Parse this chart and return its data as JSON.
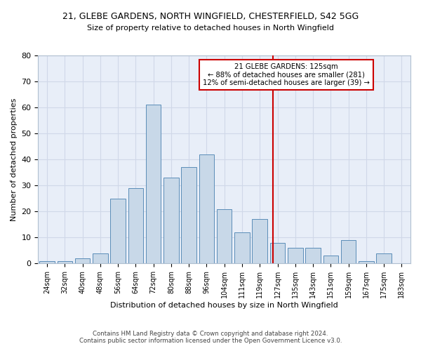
{
  "title": "21, GLEBE GARDENS, NORTH WINGFIELD, CHESTERFIELD, S42 5GG",
  "subtitle": "Size of property relative to detached houses in North Wingfield",
  "xlabel": "Distribution of detached houses by size in North Wingfield",
  "ylabel": "Number of detached properties",
  "bar_color": "#c8d8e8",
  "bar_edge_color": "#5b8db8",
  "categories": [
    "24sqm",
    "32sqm",
    "40sqm",
    "48sqm",
    "56sqm",
    "64sqm",
    "72sqm",
    "80sqm",
    "88sqm",
    "96sqm",
    "104sqm",
    "111sqm",
    "119sqm",
    "127sqm",
    "135sqm",
    "143sqm",
    "151sqm",
    "159sqm",
    "167sqm",
    "175sqm",
    "183sqm"
  ],
  "values": [
    1,
    1,
    2,
    4,
    25,
    29,
    61,
    33,
    37,
    42,
    21,
    12,
    17,
    8,
    6,
    6,
    3,
    9,
    1,
    4,
    0
  ],
  "ylim": [
    0,
    80
  ],
  "yticks": [
    0,
    10,
    20,
    30,
    40,
    50,
    60,
    70,
    80
  ],
  "vline_pos": 12.75,
  "annotation_title": "21 GLEBE GARDENS: 125sqm",
  "annotation_line1": "← 88% of detached houses are smaller (281)",
  "annotation_line2": "12% of semi-detached houses are larger (39) →",
  "annotation_box_color": "#ffffff",
  "annotation_box_edge": "#cc0000",
  "vline_color": "#cc0000",
  "footer1": "Contains HM Land Registry data © Crown copyright and database right 2024.",
  "footer2": "Contains public sector information licensed under the Open Government Licence v3.0.",
  "grid_color": "#d0d8e8",
  "bg_color": "#e8eef8"
}
